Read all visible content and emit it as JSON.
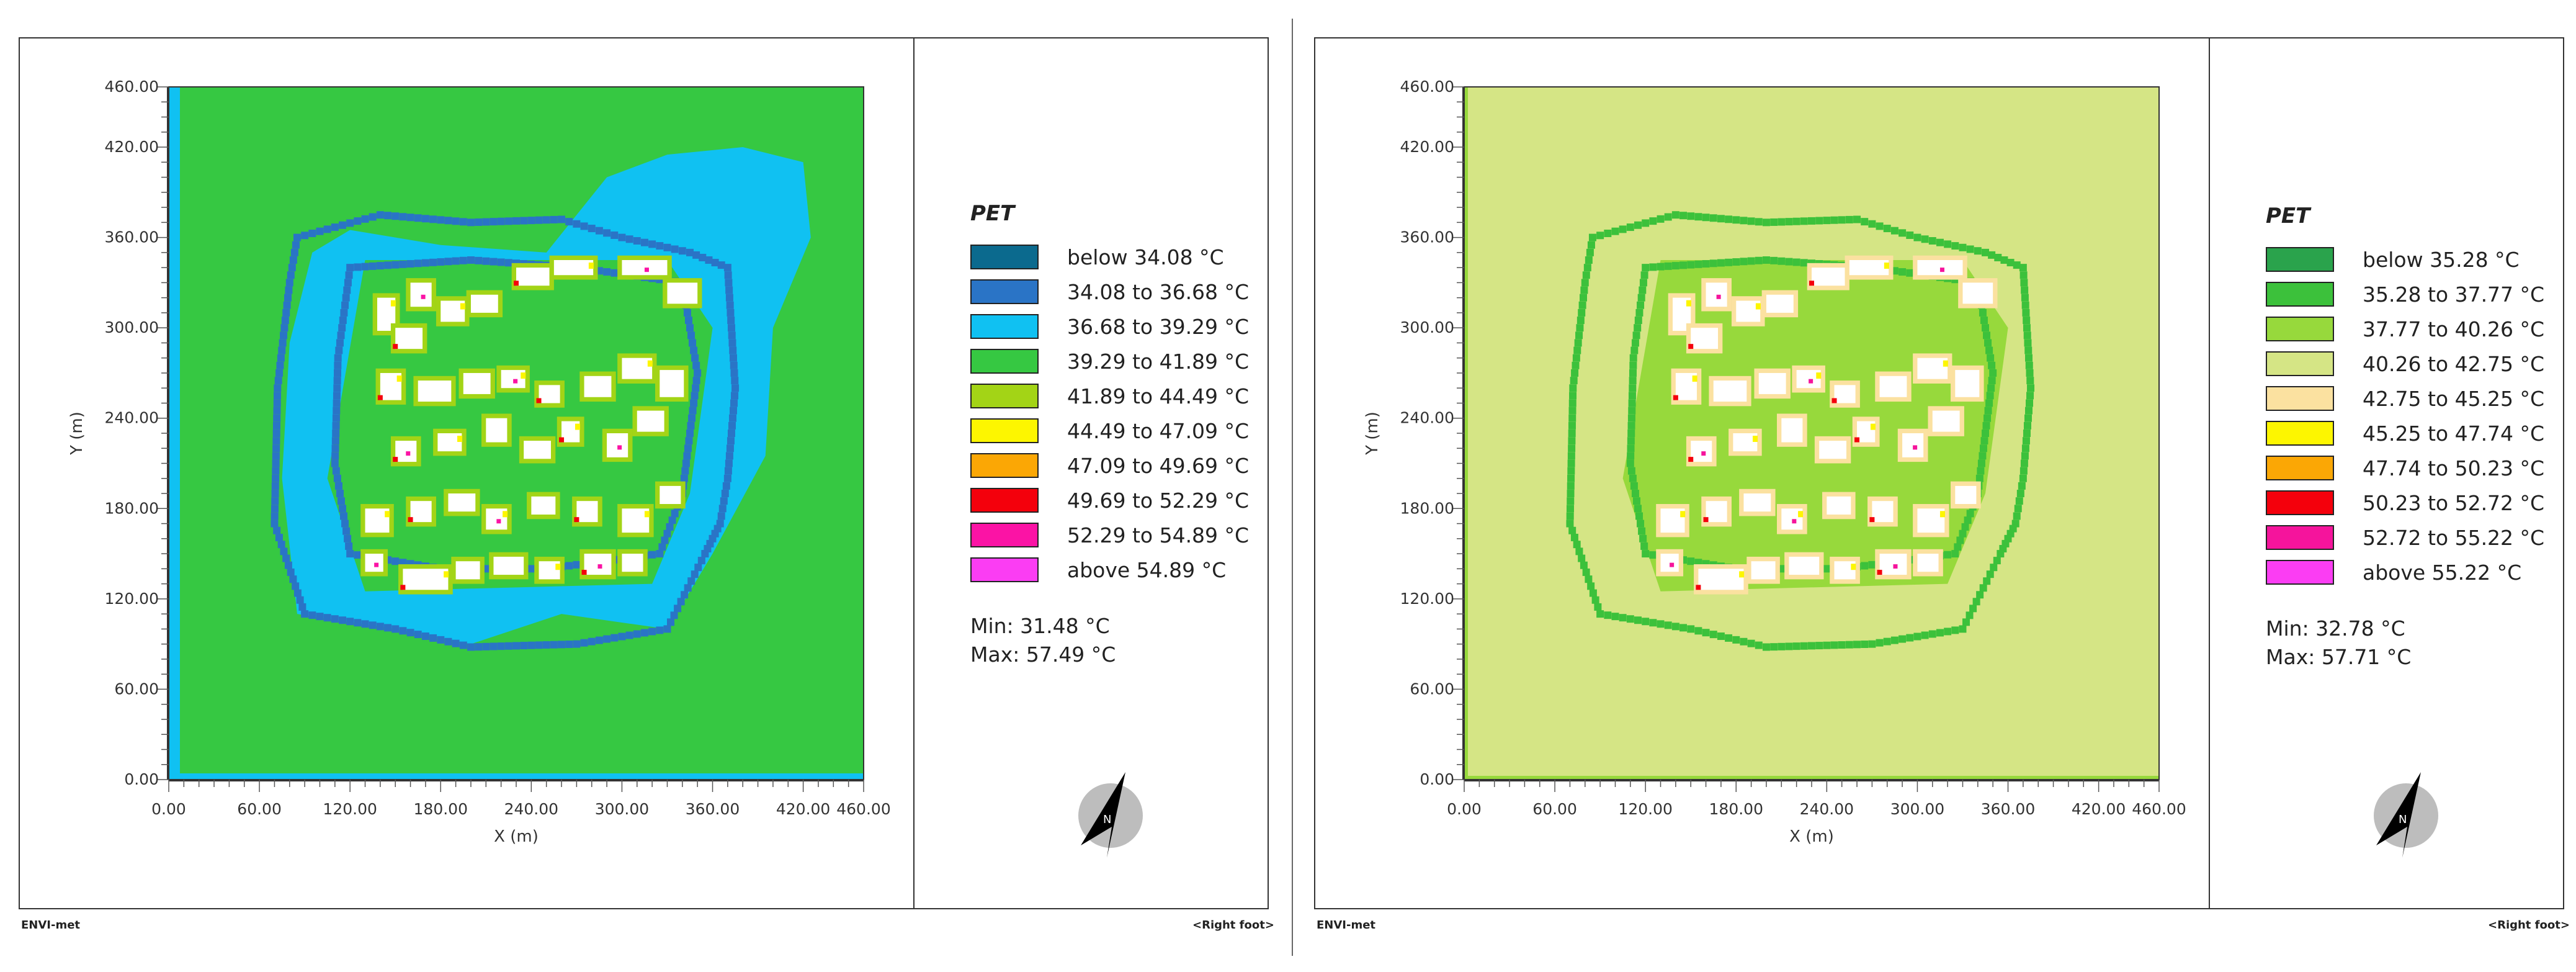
{
  "panels": [
    {
      "id": "left",
      "legend": {
        "title": "PET",
        "items": [
          {
            "label": "below 34.08 °C",
            "color": "#0b6a8e"
          },
          {
            "label": "34.08 to 36.68 °C",
            "color": "#2a74c6"
          },
          {
            "label": "36.68 to 39.29 °C",
            "color": "#10c1f2"
          },
          {
            "label": "39.29 to 41.89 °C",
            "color": "#36c842"
          },
          {
            "label": "41.89 to 44.49 °C",
            "color": "#a3d416"
          },
          {
            "label": "44.49 to 47.09 °C",
            "color": "#fdf600"
          },
          {
            "label": "47.09 to 49.69 °C",
            "color": "#fba705"
          },
          {
            "label": "49.69 to 52.29 °C",
            "color": "#f4000c"
          },
          {
            "label": "52.29 to 54.89 °C",
            "color": "#fb13a5"
          },
          {
            "label": "above 54.89 °C",
            "color": "#fb3df3"
          }
        ],
        "min": "Min: 31.48 °C",
        "max": "Max: 57.49 °C"
      },
      "footer_left": "ENVI-met",
      "footer_right": "<Right foot>"
    },
    {
      "id": "right",
      "legend": {
        "title": "PET",
        "items": [
          {
            "label": "below 35.28 °C",
            "color": "#2aa34c"
          },
          {
            "label": "35.28 to 37.77 °C",
            "color": "#3cc13b"
          },
          {
            "label": "37.77 to 40.26 °C",
            "color": "#97d93c"
          },
          {
            "label": "40.26 to 42.75 °C",
            "color": "#d5e585"
          },
          {
            "label": "42.75 to 45.25 °C",
            "color": "#fbe1a0"
          },
          {
            "label": "45.25 to 47.74 °C",
            "color": "#fdf600"
          },
          {
            "label": "47.74 to 50.23 °C",
            "color": "#fba705"
          },
          {
            "label": "50.23 to 52.72 °C",
            "color": "#f4000c"
          },
          {
            "label": "52.72 to 55.22 °C",
            "color": "#f5149c"
          },
          {
            "label": "above 55.22 °C",
            "color": "#fb3df3"
          }
        ],
        "min": "Min: 32.78 °C",
        "max": "Max: 57.71 °C"
      },
      "footer_left": "ENVI-met",
      "footer_right": "<Right foot>"
    }
  ],
  "chart_data": [
    {
      "type": "heatmap",
      "variable": "PET",
      "xlabel": "X (m)",
      "ylabel": "Y (m)",
      "xlim": [
        0,
        460
      ],
      "ylim": [
        0,
        460
      ],
      "xticks": [
        "0.00",
        "60.00",
        "120.00",
        "180.00",
        "240.00",
        "300.00",
        "360.00",
        "420.00",
        "460.00"
      ],
      "yticks": [
        "0.00",
        "60.00",
        "120.00",
        "180.00",
        "240.00",
        "300.00",
        "360.00",
        "420.00",
        "460.00"
      ],
      "background_class": "39.29 to 41.89 °C",
      "min": 31.48,
      "max": 57.49
    },
    {
      "type": "heatmap",
      "variable": "PET",
      "xlabel": "X (m)",
      "ylabel": "Y (m)",
      "xlim": [
        0,
        460
      ],
      "ylim": [
        0,
        460
      ],
      "xticks": [
        "0.00",
        "60.00",
        "120.00",
        "180.00",
        "240.00",
        "300.00",
        "360.00",
        "420.00",
        "460.00"
      ],
      "yticks": [
        "0.00",
        "60.00",
        "120.00",
        "180.00",
        "240.00",
        "300.00",
        "360.00",
        "420.00",
        "460.00"
      ],
      "background_class": "40.26 to 42.75 °C",
      "min": 32.78,
      "max": 57.71
    }
  ]
}
